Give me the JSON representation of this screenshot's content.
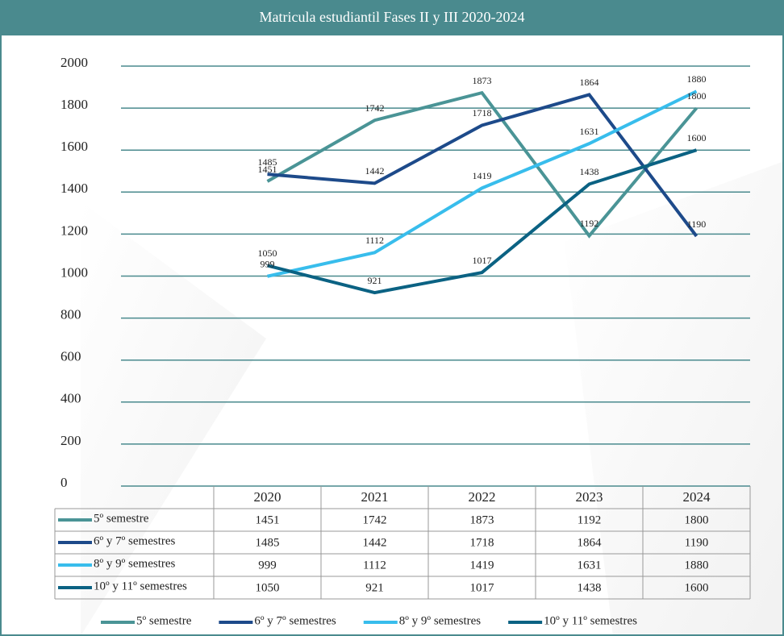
{
  "chart_data": {
    "type": "line",
    "title": "Matricula estudiantil Fases II y III 2020-2024",
    "categories": [
      "2020",
      "2021",
      "2022",
      "2023",
      "2024"
    ],
    "series": [
      {
        "name": "5º semestre",
        "color": "#4a9496",
        "values": [
          1451,
          1742,
          1873,
          1192,
          1800
        ]
      },
      {
        "name": "6º y 7º semestres",
        "color": "#1d4a8a",
        "values": [
          1485,
          1442,
          1718,
          1864,
          1190
        ]
      },
      {
        "name": "8º y 9º semestres",
        "color": "#38bdec",
        "values": [
          999,
          1112,
          1419,
          1631,
          1880
        ]
      },
      {
        "name": "10º y 11º semestres",
        "color": "#0b6283",
        "values": [
          1050,
          921,
          1017,
          1438,
          1600
        ]
      }
    ],
    "ylim": [
      0,
      2000
    ],
    "yticks": [
      0,
      200,
      400,
      600,
      800,
      1000,
      1200,
      1400,
      1600,
      1800,
      2000
    ],
    "grid": true,
    "legend": "bottom"
  }
}
